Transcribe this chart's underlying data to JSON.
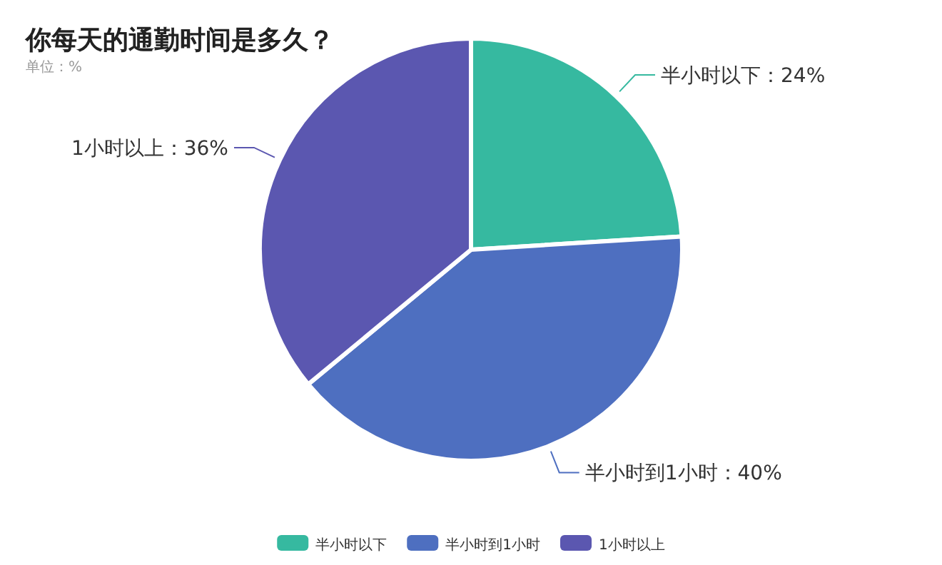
{
  "chart_data": {
    "type": "pie",
    "title": "你每天的通勤时间是多久？",
    "subtitle": "单位：%",
    "categories": [
      "半小时以下",
      "半小时到1小时",
      "1小时以上"
    ],
    "values": [
      24,
      40,
      36
    ],
    "colors": [
      "#36b9a0",
      "#4e6fc0",
      "#5b57b0"
    ],
    "value_labels": [
      "半小时以下：24%",
      "半小时到1小时：40%",
      "1小时以上：36%"
    ],
    "legend": "bottom"
  }
}
